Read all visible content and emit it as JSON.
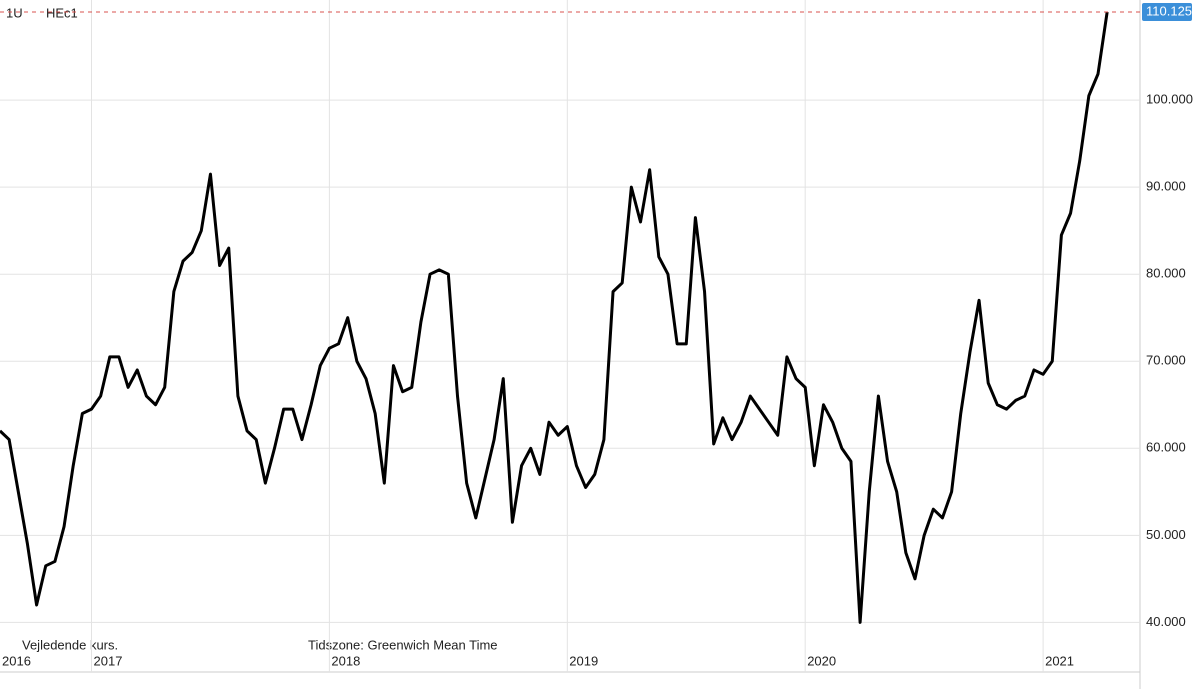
{
  "chart_data": {
    "type": "line",
    "interval": "1U",
    "symbol": "HEc1",
    "footnote": "Vejledende kurs.",
    "timezone_note": "Tidszone: Greenwich Mean Time",
    "last_price_label": "110.125",
    "categories": [
      "2016",
      null,
      null,
      null,
      null,
      null,
      null,
      null,
      null,
      null,
      "2017",
      null,
      null,
      null,
      null,
      null,
      null,
      null,
      null,
      null,
      null,
      null,
      null,
      null,
      null,
      null,
      null,
      null,
      null,
      null,
      null,
      null,
      null,
      null,
      null,
      null,
      "2018",
      null,
      null,
      null,
      null,
      null,
      null,
      null,
      null,
      null,
      null,
      null,
      null,
      null,
      null,
      null,
      null,
      null,
      null,
      null,
      null,
      null,
      null,
      null,
      null,
      null,
      "2019",
      null,
      null,
      null,
      null,
      null,
      null,
      null,
      null,
      null,
      null,
      null,
      null,
      null,
      null,
      null,
      null,
      null,
      null,
      null,
      null,
      null,
      null,
      null,
      null,
      null,
      "2020",
      null,
      null,
      null,
      null,
      null,
      null,
      null,
      null,
      null,
      null,
      null,
      null,
      null,
      null,
      null,
      null,
      null,
      null,
      null,
      null,
      null,
      null,
      null,
      null,
      null,
      "2021",
      null,
      null,
      null,
      null,
      null,
      null,
      null
    ],
    "values": [
      62,
      61,
      55,
      49,
      42,
      46.5,
      47,
      51,
      58,
      64,
      64.5,
      66,
      70.5,
      70.5,
      67,
      69,
      66,
      65,
      67,
      78,
      81.5,
      82.5,
      85,
      91.5,
      81,
      83,
      66,
      62,
      61,
      56,
      60,
      64.5,
      64.5,
      61,
      65,
      69.5,
      71.5,
      72,
      75,
      70,
      68,
      64,
      56,
      69.5,
      66.5,
      67,
      74.5,
      80,
      80.5,
      80,
      66,
      56,
      52,
      56.5,
      61,
      68,
      51.5,
      58,
      60,
      57,
      63,
      61.5,
      62.5,
      58,
      55.5,
      57,
      61,
      78,
      79,
      90,
      86,
      92,
      82,
      80,
      72,
      72,
      86.5,
      78,
      60.5,
      63.5,
      61,
      63,
      66,
      64.5,
      63,
      61.5,
      70.5,
      68,
      67,
      58,
      65,
      63,
      60,
      58.5,
      40,
      55,
      66,
      58.5,
      55,
      48,
      45,
      50,
      53,
      52,
      55,
      64,
      71,
      77,
      67.5,
      65,
      64.5,
      65.5,
      66,
      69,
      68.5,
      70,
      84.5,
      87,
      93,
      100.5,
      103,
      110.125
    ],
    "color": "#000000",
    "ylim": [
      34.3,
      111.5
    ],
    "yticks": [
      {
        "value": 40,
        "label": "40.000"
      },
      {
        "value": 50,
        "label": "50.000"
      },
      {
        "value": 60,
        "label": "60.000"
      },
      {
        "value": 70,
        "label": "70.000"
      },
      {
        "value": 80,
        "label": "80.000"
      },
      {
        "value": 90,
        "label": "90.000"
      },
      {
        "value": 100,
        "label": "100.000"
      }
    ],
    "grid": true
  }
}
